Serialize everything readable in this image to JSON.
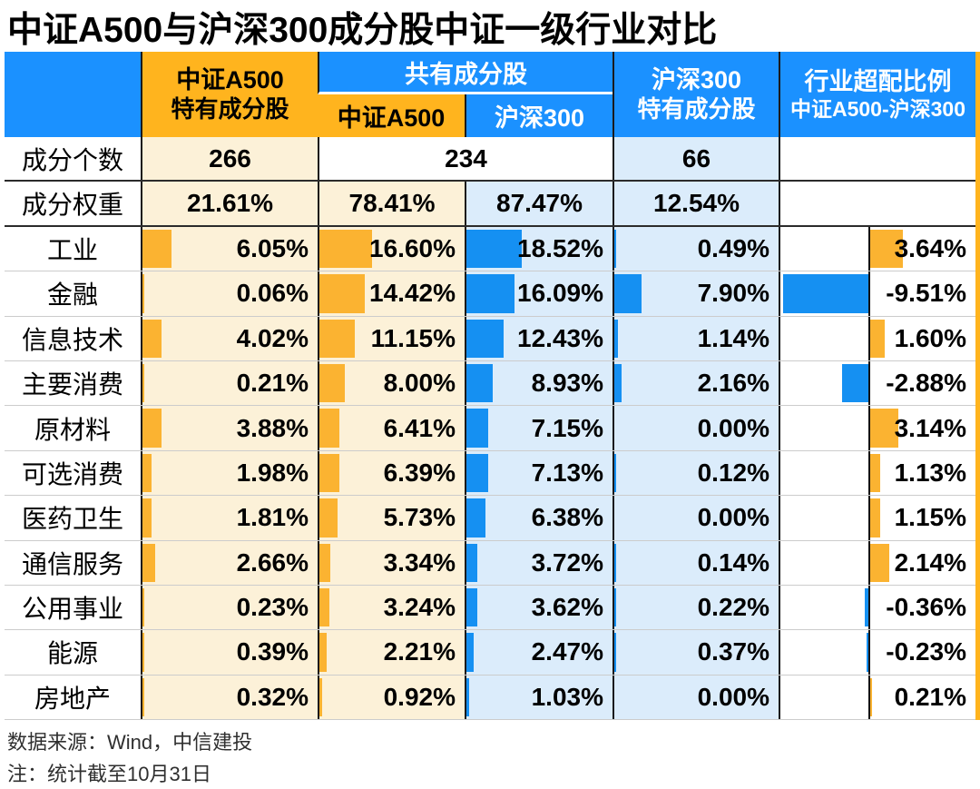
{
  "title": "中证A500与沪深300成分股中证一级行业对比",
  "header": {
    "unique_a500_line1": "中证A500",
    "unique_a500_line2": "特有成分股",
    "shared_group": "共有成分股",
    "shared_sub_a500": "中证A500",
    "shared_sub_hs300": "沪深300",
    "unique_hs300_line1": "沪深300",
    "unique_hs300_line2": "特有成分股",
    "overweight_line1": "行业超配比例",
    "overweight_line2": "中证A500-沪深300"
  },
  "rows": {
    "count_label": "成分个数",
    "count_unique_a500": "266",
    "count_shared": "234",
    "count_unique_hs300": "66",
    "weight_label": "成分权重",
    "weight_unique_a500": "21.61%",
    "weight_shared_a500": "78.41%",
    "weight_shared_hs300": "87.47%",
    "weight_unique_hs300": "12.54%"
  },
  "industries": [
    {
      "name": "工业",
      "unique_a500": "6.05%",
      "shared_a500": "16.60%",
      "shared_hs300": "18.52%",
      "unique_hs300": "0.49%",
      "overweight": "3.64%"
    },
    {
      "name": "金融",
      "unique_a500": "0.06%",
      "shared_a500": "14.42%",
      "shared_hs300": "16.09%",
      "unique_hs300": "7.90%",
      "overweight": "-9.51%"
    },
    {
      "name": "信息技术",
      "unique_a500": "4.02%",
      "shared_a500": "11.15%",
      "shared_hs300": "12.43%",
      "unique_hs300": "1.14%",
      "overweight": "1.60%"
    },
    {
      "name": "主要消费",
      "unique_a500": "0.21%",
      "shared_a500": "8.00%",
      "shared_hs300": "8.93%",
      "unique_hs300": "2.16%",
      "overweight": "-2.88%"
    },
    {
      "name": "原材料",
      "unique_a500": "3.88%",
      "shared_a500": "6.41%",
      "shared_hs300": "7.15%",
      "unique_hs300": "0.00%",
      "overweight": "3.14%"
    },
    {
      "name": "可选消费",
      "unique_a500": "1.98%",
      "shared_a500": "6.39%",
      "shared_hs300": "7.13%",
      "unique_hs300": "0.12%",
      "overweight": "1.13%"
    },
    {
      "name": "医药卫生",
      "unique_a500": "1.81%",
      "shared_a500": "5.73%",
      "shared_hs300": "6.38%",
      "unique_hs300": "0.00%",
      "overweight": "1.15%"
    },
    {
      "name": "通信服务",
      "unique_a500": "2.66%",
      "shared_a500": "3.34%",
      "shared_hs300": "3.72%",
      "unique_hs300": "0.14%",
      "overweight": "2.14%"
    },
    {
      "name": "公用事业",
      "unique_a500": "0.23%",
      "shared_a500": "3.24%",
      "shared_hs300": "3.62%",
      "unique_hs300": "0.22%",
      "overweight": "-0.36%"
    },
    {
      "name": "能源",
      "unique_a500": "0.39%",
      "shared_a500": "2.21%",
      "shared_hs300": "2.47%",
      "unique_hs300": "0.37%",
      "overweight": "-0.23%"
    },
    {
      "name": "房地产",
      "unique_a500": "0.32%",
      "shared_a500": "0.92%",
      "shared_hs300": "1.03%",
      "unique_hs300": "0.00%",
      "overweight": "0.21%"
    }
  ],
  "footer": {
    "source": "数据来源：Wind，中信建投",
    "note": "注：统计截至10月31日"
  },
  "colors": {
    "header_blue": "#1B91FF",
    "header_orange": "#FFB41E",
    "bar_blue": "#1590F2",
    "bar_orange": "#FBB331",
    "cell_yellow_bg": "#FCF1D8",
    "cell_blue_bg": "#DBECFB"
  },
  "chart_data": {
    "type": "table",
    "title": "中证A500与沪深300成分股中证一级行业对比",
    "categories": [
      "工业",
      "金融",
      "信息技术",
      "主要消费",
      "原材料",
      "可选消费",
      "医药卫生",
      "通信服务",
      "公用事业",
      "能源",
      "房地产"
    ],
    "series": [
      {
        "name": "中证A500特有成分股",
        "values": [
          6.05,
          0.06,
          4.02,
          0.21,
          3.88,
          1.98,
          1.81,
          2.66,
          0.23,
          0.39,
          0.32
        ]
      },
      {
        "name": "共有成分股-中证A500",
        "values": [
          16.6,
          14.42,
          11.15,
          8.0,
          6.41,
          6.39,
          5.73,
          3.34,
          3.24,
          2.21,
          0.92
        ]
      },
      {
        "name": "共有成分股-沪深300",
        "values": [
          18.52,
          16.09,
          12.43,
          8.93,
          7.15,
          7.13,
          6.38,
          3.72,
          3.62,
          2.47,
          1.03
        ]
      },
      {
        "name": "沪深300特有成分股",
        "values": [
          0.49,
          7.9,
          1.14,
          2.16,
          0.0,
          0.12,
          0.0,
          0.14,
          0.22,
          0.37,
          0.0
        ]
      },
      {
        "name": "行业超配比例 中证A500-沪深300",
        "values": [
          3.64,
          -9.51,
          1.6,
          -2.88,
          3.14,
          1.13,
          1.15,
          2.14,
          -0.36,
          -0.23,
          0.21
        ]
      }
    ],
    "counts": {
      "中证A500特有成分股": 266,
      "共有成分股": 234,
      "沪深300特有成分股": 66
    },
    "weights": {
      "中证A500特有成分股": 21.61,
      "共有成分股-中证A500": 78.41,
      "共有成分股-沪深300": 87.47,
      "沪深300特有成分股": 12.54
    },
    "unit": "%",
    "bar_style": "in-cell data bars; last column diverges around a zero axis (orange = positive, blue = negative)"
  }
}
